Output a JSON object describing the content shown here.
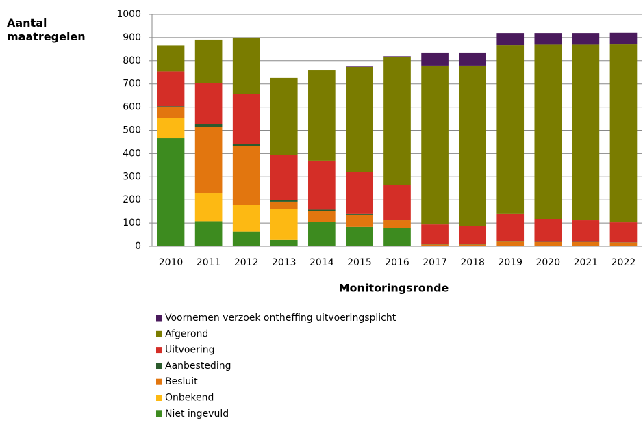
{
  "chart_data": {
    "type": "stacked-bar",
    "y_label": "Aantal maatregelen",
    "x_label": "Monitoringsronde",
    "categories": [
      "2010",
      "2011",
      "2012",
      "2013",
      "2014",
      "2015",
      "2016",
      "2017",
      "2018",
      "2019",
      "2020",
      "2021",
      "2022"
    ],
    "ylim": [
      0,
      1000
    ],
    "yticks": [
      0,
      100,
      200,
      300,
      400,
      500,
      600,
      700,
      800,
      900,
      1000
    ],
    "grid": true,
    "series": [
      {
        "name": "Niet ingevuld",
        "color": "#3d8b1f",
        "values": [
          466,
          108,
          63,
          27,
          105,
          83,
          77,
          0,
          0,
          0,
          0,
          0,
          0
        ]
      },
      {
        "name": "Onbekend",
        "color": "#fdb913",
        "values": [
          86,
          122,
          114,
          135,
          0,
          0,
          0,
          0,
          0,
          0,
          0,
          0,
          0
        ]
      },
      {
        "name": "Besluit",
        "color": "#e2760f",
        "values": [
          47,
          286,
          254,
          30,
          48,
          53,
          35,
          8,
          8,
          20,
          18,
          18,
          16
        ]
      },
      {
        "name": "Aanbesteding",
        "color": "#2b5b2d",
        "values": [
          5,
          12,
          9,
          6,
          5,
          3,
          2,
          2,
          2,
          1,
          1,
          1,
          1
        ]
      },
      {
        "name": "Uitvoering",
        "color": "#d42e27",
        "values": [
          150,
          177,
          215,
          197,
          211,
          180,
          151,
          84,
          78,
          118,
          99,
          93,
          86
        ]
      },
      {
        "name": "Afgerond",
        "color": "#7a7c00",
        "values": [
          112,
          186,
          245,
          331,
          389,
          454,
          552,
          685,
          691,
          728,
          751,
          757,
          767
        ]
      },
      {
        "name": "Voornemen verzoek ontheffing uitvoeringsplicht",
        "color": "#4a1a5c",
        "values": [
          0,
          0,
          0,
          0,
          0,
          2,
          2,
          56,
          56,
          53,
          51,
          51,
          51
        ]
      }
    ]
  }
}
